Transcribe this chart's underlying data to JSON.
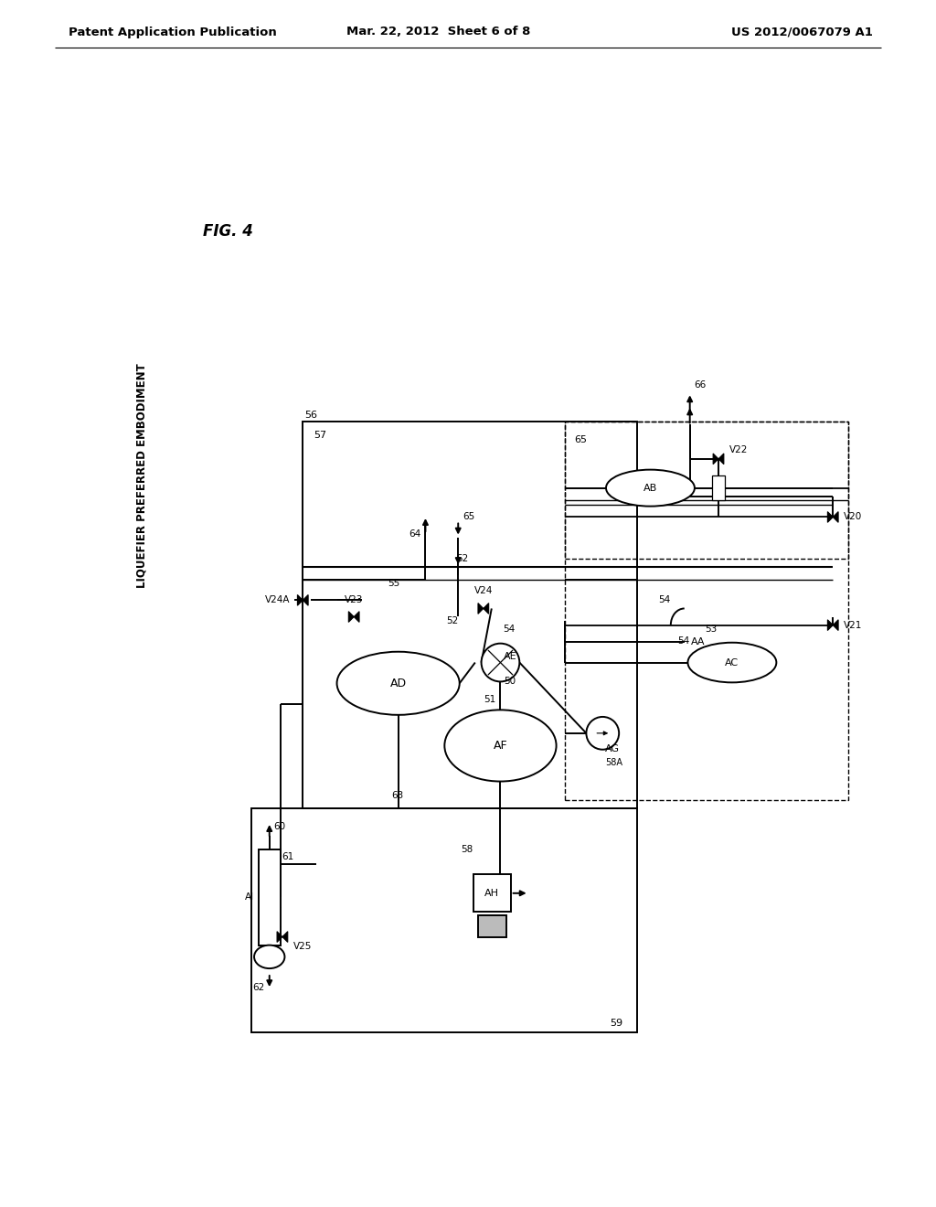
{
  "bg_color": "#ffffff",
  "line_color": "#000000",
  "header_left": "Patent Application Publication",
  "header_center": "Mar. 22, 2012  Sheet 6 of 8",
  "header_right": "US 2012/0067079 A1",
  "fig_label": "FIG. 4",
  "fig_subtitle": "LIQUEFIER PREFERRED EMBODIMENT"
}
